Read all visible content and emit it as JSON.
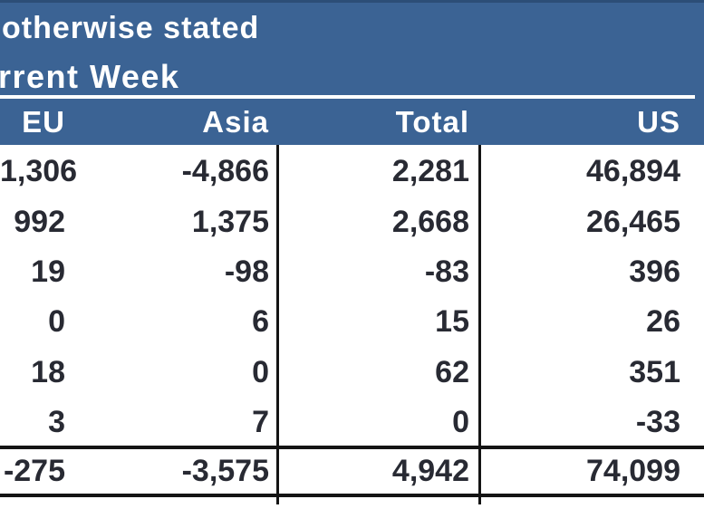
{
  "header": {
    "note_line": "otherwise stated",
    "section_title": "rrent Week"
  },
  "table": {
    "columns": [
      "EU",
      "Asia",
      "Total",
      "US"
    ],
    "rows": [
      [
        "1,306",
        "-4,866",
        "2,281",
        "46,894"
      ],
      [
        "992",
        "1,375",
        "2,668",
        "26,465"
      ],
      [
        "19",
        "-98",
        "-83",
        "396"
      ],
      [
        "0",
        "6",
        "15",
        "26"
      ],
      [
        "18",
        "0",
        "62",
        "351"
      ],
      [
        "3",
        "7",
        "0",
        "-33"
      ]
    ],
    "total_row": [
      "-275",
      "-3,575",
      "4,942",
      "74,099"
    ]
  },
  "colors": {
    "header_blue": "#3b6394",
    "header_blue_dark_edge": "#2c4e77",
    "rule_white": "#ffffff",
    "rule_black": "#141414",
    "number_text": "#282a33"
  }
}
